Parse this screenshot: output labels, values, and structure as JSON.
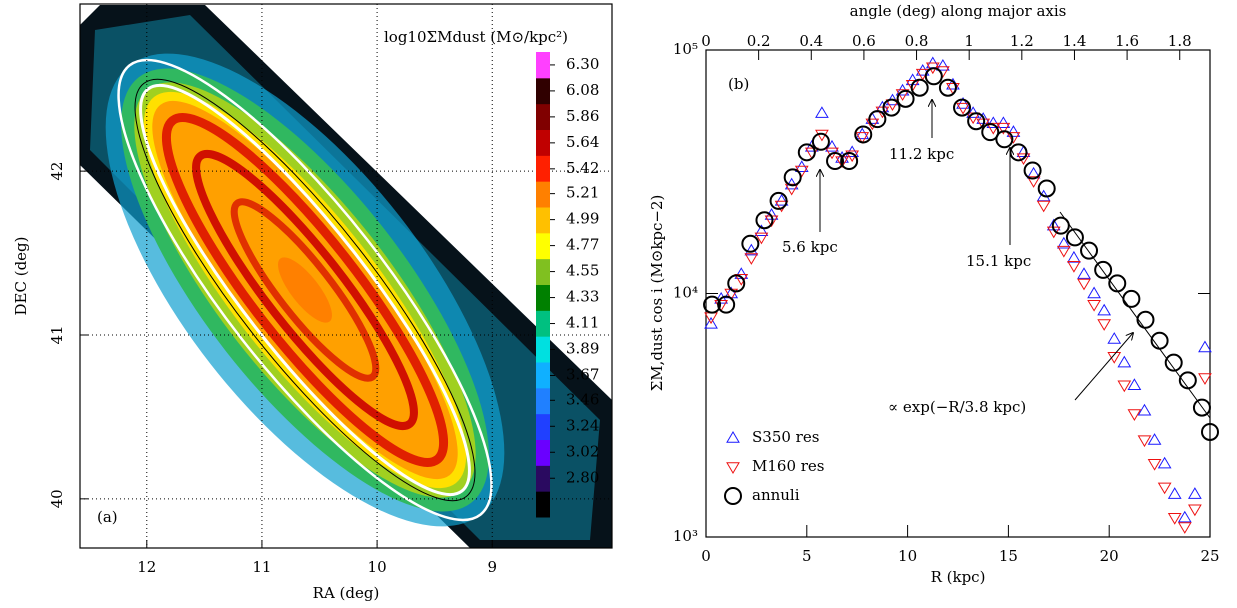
{
  "chart_data": [
    {
      "type": "map",
      "colorbar_label": "log10ΣMdust (M⊙/kpc²)",
      "xlabel": "RA (deg)",
      "ylabel": "DEC (deg)",
      "xlim": [
        12.58,
        7.96
      ],
      "ylim": [
        39.7,
        43.02
      ],
      "xticks": [
        12,
        11,
        10,
        9
      ],
      "yticks": [
        40,
        41,
        42
      ],
      "grid": true,
      "annotation": "(a)",
      "colorbar_ticks": [
        {
          "value": 2.8,
          "label": "2.80"
        },
        3.02,
        3.24,
        3.46,
        3.67,
        3.89,
        4.11,
        4.33,
        4.55,
        4.77,
        4.99,
        5.21,
        5.42,
        5.64,
        5.86,
        6.08,
        {
          "value": 6.3,
          "label": "6.30"
        }
      ],
      "colorbar_colors": [
        "#000000",
        "#2a0a60",
        "#6a00ff",
        "#2040ff",
        "#2080ff",
        "#10b0ff",
        "#00e0e0",
        "#00c080",
        "#008000",
        "#80c020",
        "#ffff00",
        "#ffc000",
        "#ff8000",
        "#ff2000",
        "#c00000",
        "#800000",
        "#300000",
        "#ff40ff"
      ]
    },
    {
      "type": "scatter",
      "yscale": "log",
      "xlabel": "R (kpc)",
      "ylabel": "ΣM,dust cos i (M⊙kpc−2)",
      "x2label": "angle (deg) along major axis",
      "xlim": [
        0,
        25
      ],
      "ylim": [
        1000,
        100000
      ],
      "x2lim": [
        0,
        1.915
      ],
      "xticks": [
        0,
        5,
        10,
        15,
        20,
        25
      ],
      "yticks": [
        {
          "value": 1000,
          "label": "10³"
        },
        {
          "value": 10000,
          "label": "10⁴"
        },
        {
          "value": 100000,
          "label": "10⁵"
        }
      ],
      "x2ticks": [
        0,
        0.2,
        0.4,
        0.6,
        0.8,
        1,
        1.2,
        1.4,
        1.6,
        1.8
      ],
      "x": [
        0.25,
        0.75,
        1.25,
        1.75,
        2.25,
        2.75,
        3.25,
        3.75,
        4.25,
        4.75,
        5.25,
        5.75,
        6.25,
        6.75,
        7.25,
        7.75,
        8.25,
        8.75,
        9.25,
        9.75,
        10.25,
        10.75,
        11.25,
        11.75,
        12.25,
        12.75,
        13.25,
        13.75,
        14.25,
        14.75,
        15.25,
        15.75,
        16.25,
        16.75,
        17.25,
        17.75,
        18.25,
        18.75,
        19.25,
        19.75,
        20.25,
        20.75,
        21.25,
        21.75,
        22.25,
        22.75,
        23.25,
        23.75,
        24.25,
        24.75
      ],
      "series": [
        {
          "name": "S350 res",
          "color": "#1a1aff",
          "marker": "triangle-up",
          "values": [
            7500,
            9500,
            10000,
            12000,
            15000,
            18000,
            21000,
            24000,
            28000,
            33000,
            40000,
            55000,
            40000,
            36000,
            38000,
            45000,
            52000,
            58000,
            62000,
            68000,
            75000,
            82000,
            88000,
            86000,
            72000,
            60000,
            55000,
            52000,
            50000,
            50000,
            46000,
            38000,
            31000,
            25000,
            19000,
            16000,
            14000,
            12000,
            10000,
            8500,
            6500,
            5200,
            4200,
            3300,
            2500,
            2000,
            1500,
            1200,
            1500,
            6000
          ]
        },
        {
          "name": "M160 res",
          "color": "#ee1111",
          "marker": "triangle-down",
          "values": [
            8000,
            9000,
            10000,
            11500,
            14000,
            17000,
            20000,
            23000,
            27000,
            32000,
            38000,
            45000,
            38000,
            35000,
            37000,
            44000,
            50000,
            56000,
            60000,
            66000,
            72000,
            80000,
            85000,
            82000,
            70000,
            58000,
            53000,
            50000,
            48000,
            48000,
            44000,
            36000,
            29000,
            23000,
            18000,
            15000,
            13000,
            11000,
            9000,
            7500,
            5500,
            4200,
            3200,
            2500,
            2000,
            1600,
            1200,
            1100,
            1300,
            4500
          ]
        },
        {
          "name": "annuli",
          "color": "#000000",
          "marker": "circle",
          "x": [
            0.3,
            1,
            1.5,
            2.2,
            2.9,
            3.6,
            4.3,
            5,
            5.7,
            6.4,
            7.1,
            7.8,
            8.5,
            9.2,
            9.9,
            10.6,
            11.3,
            12,
            12.7,
            13.4,
            14.1,
            14.8,
            15.5,
            16.2,
            16.9,
            17.6,
            18.3,
            19,
            19.7,
            20.4,
            21.1,
            21.8,
            22.5,
            23.2,
            23.9,
            24.6,
            25
          ],
          "values": [
            9000,
            9000,
            11000,
            16000,
            20000,
            24000,
            30000,
            38000,
            42000,
            35000,
            35000,
            45000,
            52000,
            58000,
            63000,
            70000,
            78000,
            70000,
            58000,
            51000,
            46000,
            43000,
            38000,
            32000,
            27000,
            19000,
            17000,
            15000,
            12500,
            11000,
            9500,
            7800,
            6400,
            5200,
            4400,
            3400,
            2700
          ]
        }
      ],
      "legend": "lower left",
      "annotations": [
        "(b)",
        "5.6 kpc",
        "11.2 kpc",
        "15.1 kpc",
        "∝ exp(−R/3.8 kpc)"
      ]
    }
  ]
}
